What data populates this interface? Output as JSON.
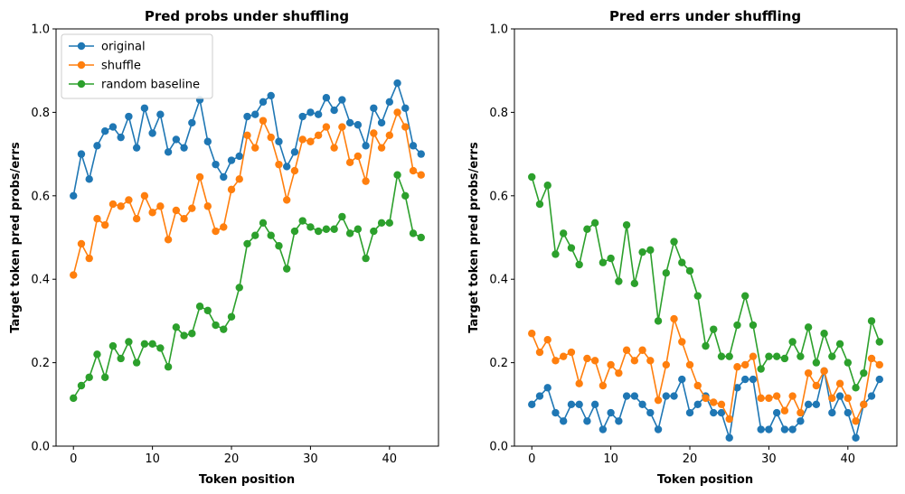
{
  "colors": {
    "original": "#1f77b4",
    "shuffle": "#ff7f0e",
    "random baseline": "#2ca02c"
  },
  "chart_data": [
    {
      "type": "line",
      "title": "Pred probs under shuffling",
      "xlabel": "Token position",
      "ylabel": "Target token pred probs/errs",
      "xlim": [
        -2.2,
        46.2
      ],
      "ylim": [
        0,
        1
      ],
      "xticks": [
        0,
        10,
        20,
        30,
        40
      ],
      "yticks": [
        0.0,
        0.2,
        0.4,
        0.6,
        0.8,
        1.0
      ],
      "legend": "top-left",
      "x": [
        0,
        1,
        2,
        3,
        4,
        5,
        6,
        7,
        8,
        9,
        10,
        11,
        12,
        13,
        14,
        15,
        16,
        17,
        18,
        19,
        20,
        21,
        22,
        23,
        24,
        25,
        26,
        27,
        28,
        29,
        30,
        31,
        32,
        33,
        34,
        35,
        36,
        37,
        38,
        39,
        40,
        41,
        42,
        43,
        44
      ],
      "series": [
        {
          "name": "original",
          "values": [
            0.6,
            0.7,
            0.64,
            0.72,
            0.755,
            0.765,
            0.74,
            0.79,
            0.715,
            0.81,
            0.75,
            0.795,
            0.705,
            0.735,
            0.715,
            0.775,
            0.83,
            0.73,
            0.675,
            0.645,
            0.685,
            0.695,
            0.79,
            0.795,
            0.825,
            0.84,
            0.73,
            0.67,
            0.705,
            0.79,
            0.8,
            0.795,
            0.835,
            0.805,
            0.83,
            0.775,
            0.77,
            0.72,
            0.81,
            0.775,
            0.825,
            0.87,
            0.81,
            0.72,
            0.7
          ]
        },
        {
          "name": "shuffle",
          "values": [
            0.41,
            0.485,
            0.45,
            0.545,
            0.53,
            0.58,
            0.575,
            0.59,
            0.545,
            0.6,
            0.56,
            0.575,
            0.495,
            0.565,
            0.545,
            0.57,
            0.645,
            0.575,
            0.515,
            0.525,
            0.615,
            0.64,
            0.745,
            0.715,
            0.78,
            0.74,
            0.675,
            0.59,
            0.66,
            0.735,
            0.73,
            0.745,
            0.765,
            0.715,
            0.765,
            0.68,
            0.695,
            0.635,
            0.75,
            0.715,
            0.745,
            0.8,
            0.765,
            0.66,
            0.65
          ]
        },
        {
          "name": "random baseline",
          "values": [
            0.115,
            0.145,
            0.165,
            0.22,
            0.165,
            0.24,
            0.21,
            0.25,
            0.2,
            0.245,
            0.245,
            0.235,
            0.19,
            0.285,
            0.265,
            0.27,
            0.335,
            0.325,
            0.29,
            0.28,
            0.31,
            0.38,
            0.485,
            0.505,
            0.535,
            0.505,
            0.48,
            0.425,
            0.515,
            0.54,
            0.525,
            0.515,
            0.52,
            0.52,
            0.55,
            0.51,
            0.52,
            0.45,
            0.515,
            0.535,
            0.535,
            0.65,
            0.6,
            0.51,
            0.5
          ]
        }
      ]
    },
    {
      "type": "line",
      "title": "Pred errs under shuffling",
      "xlabel": "Token position",
      "ylabel": "Target token pred probs/errs",
      "xlim": [
        -2.2,
        46.2
      ],
      "ylim": [
        0,
        1
      ],
      "xticks": [
        0,
        10,
        20,
        30,
        40
      ],
      "yticks": [
        0.0,
        0.2,
        0.4,
        0.6,
        0.8,
        1.0
      ],
      "legend": "none",
      "x": [
        0,
        1,
        2,
        3,
        4,
        5,
        6,
        7,
        8,
        9,
        10,
        11,
        12,
        13,
        14,
        15,
        16,
        17,
        18,
        19,
        20,
        21,
        22,
        23,
        24,
        25,
        26,
        27,
        28,
        29,
        30,
        31,
        32,
        33,
        34,
        35,
        36,
        37,
        38,
        39,
        40,
        41,
        42,
        43,
        44
      ],
      "series": [
        {
          "name": "original",
          "values": [
            0.1,
            0.12,
            0.14,
            0.08,
            0.06,
            0.1,
            0.1,
            0.06,
            0.1,
            0.04,
            0.08,
            0.06,
            0.12,
            0.12,
            0.1,
            0.08,
            0.04,
            0.12,
            0.12,
            0.16,
            0.08,
            0.1,
            0.12,
            0.08,
            0.08,
            0.02,
            0.14,
            0.16,
            0.16,
            0.04,
            0.04,
            0.08,
            0.04,
            0.04,
            0.06,
            0.1,
            0.1,
            0.18,
            0.08,
            0.12,
            0.08,
            0.02,
            0.1,
            0.12,
            0.16
          ]
        },
        {
          "name": "shuffle",
          "values": [
            0.27,
            0.225,
            0.255,
            0.205,
            0.215,
            0.225,
            0.15,
            0.21,
            0.205,
            0.145,
            0.195,
            0.175,
            0.23,
            0.205,
            0.23,
            0.205,
            0.11,
            0.195,
            0.305,
            0.25,
            0.195,
            0.145,
            0.115,
            0.105,
            0.1,
            0.065,
            0.19,
            0.195,
            0.215,
            0.115,
            0.115,
            0.12,
            0.085,
            0.12,
            0.08,
            0.175,
            0.145,
            0.18,
            0.115,
            0.15,
            0.115,
            0.06,
            0.1,
            0.21,
            0.195
          ]
        },
        {
          "name": "random baseline",
          "values": [
            0.645,
            0.58,
            0.625,
            0.46,
            0.51,
            0.475,
            0.435,
            0.52,
            0.535,
            0.44,
            0.45,
            0.395,
            0.53,
            0.39,
            0.465,
            0.47,
            0.3,
            0.415,
            0.49,
            0.44,
            0.42,
            0.36,
            0.24,
            0.28,
            0.215,
            0.215,
            0.29,
            0.36,
            0.29,
            0.185,
            0.215,
            0.215,
            0.21,
            0.25,
            0.215,
            0.285,
            0.2,
            0.27,
            0.215,
            0.245,
            0.2,
            0.14,
            0.175,
            0.3,
            0.25
          ]
        }
      ]
    }
  ]
}
